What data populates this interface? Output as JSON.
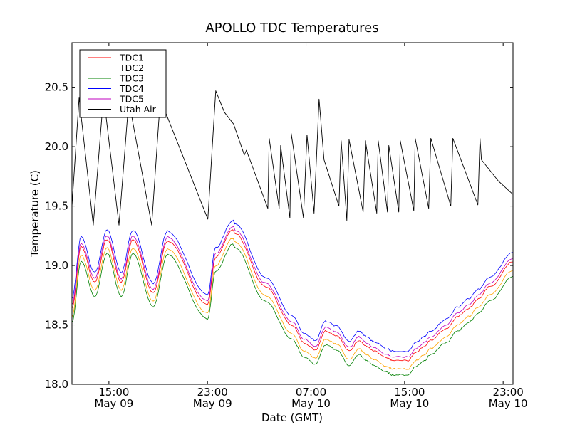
{
  "chart_data": {
    "type": "line",
    "title": "APOLLO TDC Temperatures",
    "xlabel": "Date (GMT)",
    "ylabel": "Temperature (C)",
    "x_units": "hours since May 09 12:00 GMT",
    "xlim": [
      0,
      35.8
    ],
    "ylim": [
      18.0,
      20.875
    ],
    "grid": false,
    "legend_position": "top-left",
    "x_ticks": [
      {
        "value": 3,
        "line1": "15:00",
        "line2": "May 09"
      },
      {
        "value": 11,
        "line1": "23:00",
        "line2": "May 09"
      },
      {
        "value": 19,
        "line1": "07:00",
        "line2": "May 10"
      },
      {
        "value": 27,
        "line1": "15:00",
        "line2": "May 10"
      },
      {
        "value": 35,
        "line1": "23:00",
        "line2": "May 10"
      }
    ],
    "y_ticks": [
      {
        "value": 18.0,
        "label": "18.0"
      },
      {
        "value": 18.5,
        "label": "18.5"
      },
      {
        "value": 19.0,
        "label": "19.0"
      },
      {
        "value": 19.5,
        "label": "19.5"
      },
      {
        "value": 20.0,
        "label": "20.0"
      },
      {
        "value": 20.5,
        "label": "20.5"
      }
    ],
    "tdc_base_x": [
      0.0,
      0.75,
      1.85,
      2.85,
      4.0,
      4.95,
      6.6,
      7.75,
      11.0,
      11.67,
      13.06,
      13.24,
      15.72,
      17.86,
      18.84,
      19.77,
      20.58,
      21.5,
      22.5,
      23.3,
      23.9,
      24.48,
      25.6,
      26.0,
      27.3,
      27.9,
      28.6,
      29.1,
      30.4,
      31.3,
      32.2,
      33.0,
      33.9,
      35.8
    ],
    "series": [
      {
        "name": "TDC1",
        "color": "#ff0000",
        "offset": -0.08,
        "values": [
          18.72,
          19.24,
          18.94,
          19.3,
          18.94,
          19.3,
          18.85,
          19.29,
          18.75,
          19.15,
          19.38,
          19.35,
          18.9,
          18.58,
          18.43,
          18.37,
          18.53,
          18.49,
          18.36,
          18.45,
          18.4,
          18.36,
          18.3,
          18.28,
          18.28,
          18.35,
          18.4,
          18.45,
          18.55,
          18.65,
          18.72,
          18.8,
          18.9,
          19.11
        ]
      },
      {
        "name": "TDC2",
        "color": "#ffa500",
        "offset": -0.15,
        "values": [
          18.72,
          19.24,
          18.94,
          19.3,
          18.94,
          19.3,
          18.85,
          19.29,
          18.75,
          19.15,
          19.38,
          19.35,
          18.9,
          18.58,
          18.43,
          18.37,
          18.53,
          18.49,
          18.36,
          18.45,
          18.4,
          18.36,
          18.3,
          18.28,
          18.28,
          18.35,
          18.4,
          18.45,
          18.55,
          18.65,
          18.72,
          18.8,
          18.9,
          19.11
        ]
      },
      {
        "name": "TDC3",
        "color": "#008000",
        "offset": -0.2,
        "values": [
          18.72,
          19.24,
          18.94,
          19.3,
          18.94,
          19.3,
          18.85,
          19.29,
          18.75,
          19.15,
          19.38,
          19.35,
          18.9,
          18.58,
          18.43,
          18.37,
          18.53,
          18.49,
          18.36,
          18.45,
          18.4,
          18.36,
          18.3,
          18.28,
          18.28,
          18.35,
          18.4,
          18.45,
          18.55,
          18.65,
          18.72,
          18.8,
          18.9,
          19.11
        ]
      },
      {
        "name": "TDC4",
        "color": "#0000ff",
        "offset": 0.0,
        "values": [
          18.72,
          19.24,
          18.94,
          19.3,
          18.94,
          19.3,
          18.85,
          19.29,
          18.75,
          19.15,
          19.38,
          19.35,
          18.9,
          18.58,
          18.43,
          18.37,
          18.53,
          18.49,
          18.36,
          18.45,
          18.4,
          18.36,
          18.3,
          18.28,
          18.28,
          18.35,
          18.4,
          18.45,
          18.55,
          18.65,
          18.72,
          18.8,
          18.9,
          19.11
        ]
      },
      {
        "name": "TDC5",
        "color": "#bf00bf",
        "offset": -0.05,
        "values": [
          18.72,
          19.24,
          18.94,
          19.3,
          18.94,
          19.3,
          18.85,
          19.29,
          18.75,
          19.15,
          19.38,
          19.35,
          18.9,
          18.58,
          18.43,
          18.37,
          18.53,
          18.49,
          18.36,
          18.45,
          18.4,
          18.36,
          18.3,
          18.28,
          18.28,
          18.35,
          18.4,
          18.45,
          18.55,
          18.65,
          18.72,
          18.8,
          18.9,
          19.11
        ]
      },
      {
        "name": "Utah Air",
        "color": "#000000",
        "offset": 0.0,
        "x": [
          0.0,
          0.58,
          1.73,
          2.54,
          2.77,
          3.82,
          4.62,
          4.86,
          6.47,
          7.17,
          7.86,
          11.03,
          11.67,
          12.37,
          13.12,
          13.99,
          14.16,
          15.9,
          16.01,
          16.82,
          16.94,
          17.69,
          17.8,
          18.79,
          19.08,
          19.65,
          20.06,
          20.46,
          21.67,
          21.85,
          22.31,
          22.49,
          23.64,
          23.82,
          24.74,
          24.86,
          25.61,
          25.72,
          26.53,
          26.65,
          27.75,
          27.86,
          28.96,
          29.13,
          30.75,
          30.92,
          32.95,
          33.12,
          33.24,
          34.62,
          35.78
        ],
        "values": [
          19.5,
          20.41,
          19.34,
          20.4,
          20.25,
          19.34,
          20.4,
          20.25,
          19.34,
          20.4,
          20.22,
          19.39,
          20.47,
          20.29,
          20.19,
          19.93,
          19.97,
          19.48,
          20.07,
          19.48,
          20.01,
          19.4,
          20.11,
          19.4,
          20.1,
          19.44,
          20.4,
          19.89,
          19.5,
          20.05,
          19.38,
          20.06,
          19.45,
          20.05,
          19.44,
          20.05,
          19.45,
          20.01,
          19.45,
          20.05,
          19.46,
          20.07,
          19.48,
          20.07,
          19.5,
          20.07,
          19.51,
          20.07,
          19.89,
          19.71,
          19.6
        ]
      }
    ]
  }
}
